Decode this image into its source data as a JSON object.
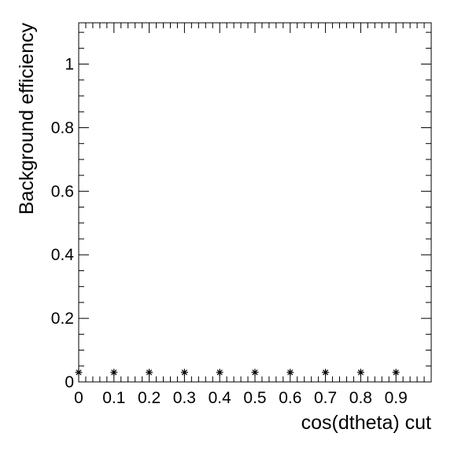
{
  "chart_data": {
    "type": "scatter",
    "title": "",
    "xlabel": "cos(dtheta) cut",
    "ylabel": "Background efficiency",
    "xlim": [
      0,
      1
    ],
    "ylim": [
      0,
      1.13
    ],
    "grid": false,
    "legend": "none",
    "marker": "asterisk",
    "color": "#000000",
    "x_ticks": [
      {
        "value": 0,
        "label": "0"
      },
      {
        "value": 0.1,
        "label": "0.1"
      },
      {
        "value": 0.2,
        "label": "0.2"
      },
      {
        "value": 0.3,
        "label": "0.3"
      },
      {
        "value": 0.4,
        "label": "0.4"
      },
      {
        "value": 0.5,
        "label": "0.5"
      },
      {
        "value": 0.6,
        "label": "0.6"
      },
      {
        "value": 0.7,
        "label": "0.7"
      },
      {
        "value": 0.8,
        "label": "0.8"
      },
      {
        "value": 0.9,
        "label": "0.9"
      }
    ],
    "y_ticks": [
      {
        "value": 0,
        "label": "0"
      },
      {
        "value": 0.2,
        "label": "0.2"
      },
      {
        "value": 0.4,
        "label": "0.4"
      },
      {
        "value": 0.6,
        "label": "0.6"
      },
      {
        "value": 0.8,
        "label": "0.8"
      },
      {
        "value": 1,
        "label": "1"
      }
    ],
    "series": [
      {
        "x": [
          0,
          0.1,
          0.2,
          0.3,
          0.4,
          0.5,
          0.6,
          0.7,
          0.8,
          0.9
        ],
        "y": [
          0.03,
          0.03,
          0.03,
          0.03,
          0.03,
          0.03,
          0.03,
          0.03,
          0.03,
          0.03
        ]
      }
    ]
  }
}
